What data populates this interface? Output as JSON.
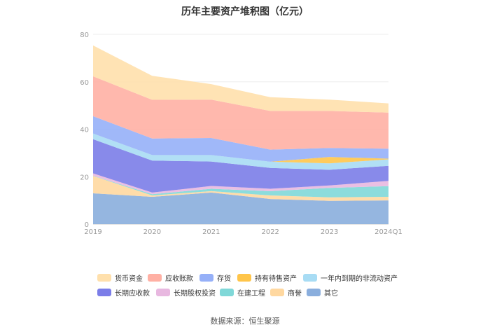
{
  "title": "历年主要资产堆积图（亿元）",
  "source": "数据来源：恒生聚源",
  "chart_data": {
    "type": "area",
    "stacked": true,
    "categories": [
      "2019",
      "2020",
      "2021",
      "2022",
      "2023",
      "2024Q1"
    ],
    "ylim": [
      0,
      80
    ],
    "yticks": [
      0,
      20,
      40,
      60,
      80
    ],
    "grid": true,
    "legend_position": "bottom",
    "series": [
      {
        "name": "其它",
        "color": "#8aaedd",
        "values": [
          13.0,
          11.5,
          13.3,
          10.6,
          9.8,
          10.0
        ]
      },
      {
        "name": "商誉",
        "color": "#ffd8a0",
        "values": [
          7.3,
          0.6,
          0.6,
          1.5,
          1.5,
          1.5
        ]
      },
      {
        "name": "在建工程",
        "color": "#80d8d8",
        "values": [
          0.1,
          0.5,
          1.0,
          1.8,
          4.0,
          4.5
        ]
      },
      {
        "name": "长期股权投资",
        "color": "#e8b8e0",
        "values": [
          1.0,
          0.7,
          1.2,
          1.0,
          1.0,
          2.2
        ]
      },
      {
        "name": "长期应收款",
        "color": "#7b7de8",
        "values": [
          14.4,
          13.5,
          10.3,
          8.8,
          6.6,
          6.4
        ]
      },
      {
        "name": "一年内到期的非流动资产",
        "color": "#a8dcf4",
        "values": [
          2.4,
          2.3,
          2.7,
          2.6,
          2.7,
          2.7
        ]
      },
      {
        "name": "持有待售资产",
        "color": "#ffc54a",
        "values": [
          0,
          0,
          0,
          0,
          2.7,
          0.3
        ]
      },
      {
        "name": "存货",
        "color": "#96b0f8",
        "values": [
          7.3,
          7.0,
          7.2,
          5.1,
          3.8,
          4.2
        ]
      },
      {
        "name": "应收账款",
        "color": "#ffb0a4",
        "values": [
          16.8,
          16.3,
          16.2,
          16.3,
          15.6,
          15.2
        ]
      },
      {
        "name": "货币资金",
        "color": "#ffe0ac",
        "values": [
          13.0,
          10.1,
          6.5,
          5.8,
          4.8,
          3.9
        ]
      }
    ]
  },
  "legend": [
    {
      "name": "货币资金",
      "color": "#ffe0ac"
    },
    {
      "name": "应收账款",
      "color": "#ffb0a4"
    },
    {
      "name": "存货",
      "color": "#96b0f8"
    },
    {
      "name": "持有待售资产",
      "color": "#ffc54a"
    },
    {
      "name": "一年内到期的非流动资产",
      "color": "#a8dcf4"
    },
    {
      "name": "长期应收款",
      "color": "#7b7de8"
    },
    {
      "name": "长期股权投资",
      "color": "#e8b8e0"
    },
    {
      "name": "在建工程",
      "color": "#80d8d8"
    },
    {
      "name": "商誉",
      "color": "#ffd8a0"
    },
    {
      "name": "其它",
      "color": "#8aaedd"
    }
  ]
}
